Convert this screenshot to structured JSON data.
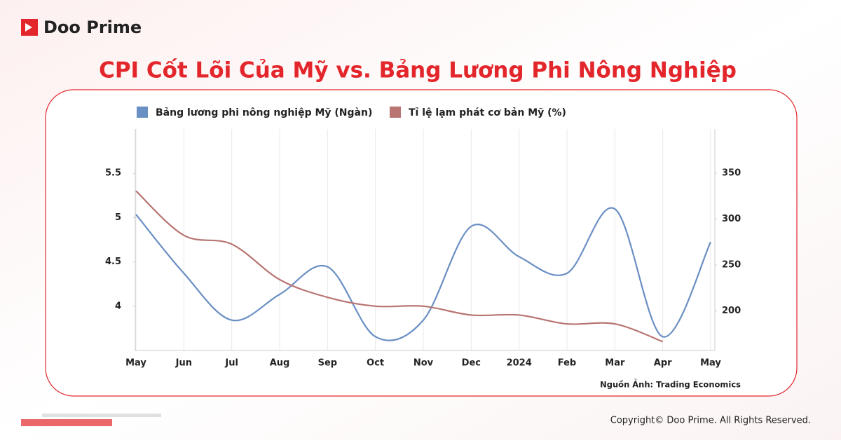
{
  "brand": "Doo Prime",
  "copyright": "Copyright© Doo Prime. All Rights Reserved.",
  "chart_data": {
    "type": "line",
    "title": "CPI Cốt Lõi Của Mỹ vs. Bảng Lương Phi Nông Nghiệp",
    "source": "Nguồn Ảnh: Trading Economics",
    "categories": [
      "May",
      "Jun",
      "Jul",
      "Aug",
      "Sep",
      "Oct",
      "Nov",
      "Dec",
      "2024",
      "Feb",
      "Mar",
      "Apr",
      "May"
    ],
    "series": [
      {
        "name": "Bảng lương phi nông nghiệp Mỹ (Ngàn)",
        "color": "#6a8fc3",
        "axis": "y2",
        "values": [
          305,
          241,
          190,
          218,
          248,
          172,
          190,
          292,
          259,
          241,
          311,
          172,
          275
        ]
      },
      {
        "name": "Tỉ lệ lạm phát cơ bản Mỹ (%)",
        "color": "#b87572",
        "values": [
          5.3,
          4.8,
          4.7,
          4.3,
          4.1,
          4.0,
          4.0,
          3.9,
          3.9,
          3.8,
          3.8,
          3.6,
          null
        ]
      }
    ],
    "ylim": [
      3.5,
      6
    ],
    "yticks": [
      4,
      4.5,
      5,
      5.5
    ],
    "y2lim": [
      157,
      398
    ],
    "y2ticks": [
      200,
      250,
      300,
      350
    ],
    "grid": true
  }
}
